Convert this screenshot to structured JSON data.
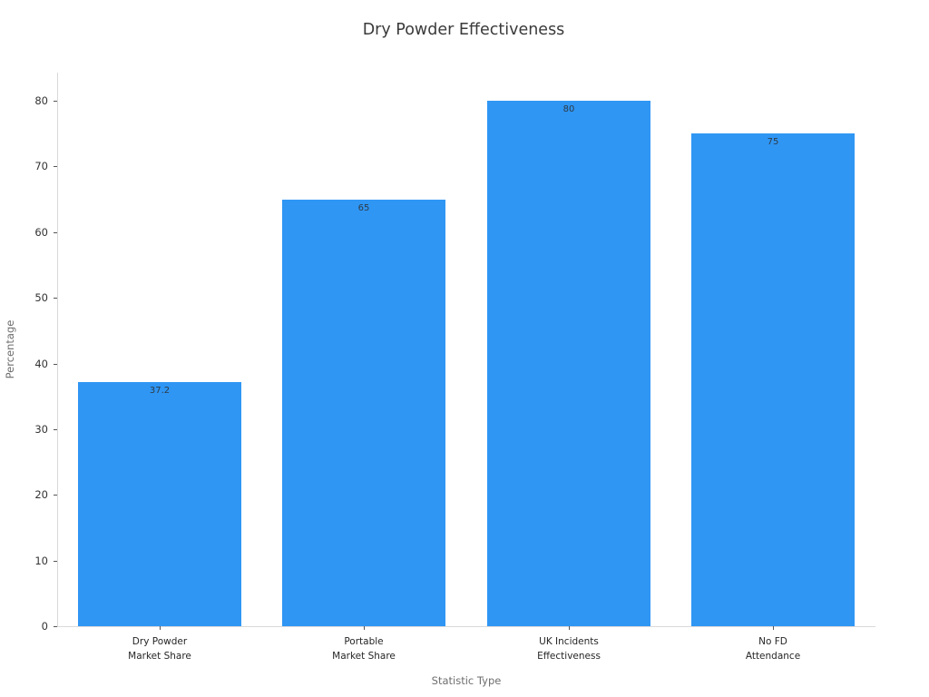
{
  "chart_data": {
    "type": "bar",
    "title": "Dry Powder Effectiveness",
    "xlabel": "Statistic Type",
    "ylabel": "Percentage",
    "categories": [
      [
        "Dry Powder",
        "Market Share"
      ],
      [
        "Portable",
        "Market Share"
      ],
      [
        "UK Incidents",
        "Effectiveness"
      ],
      [
        "No FD",
        "Attendance"
      ]
    ],
    "values": [
      37.2,
      65,
      80,
      75
    ],
    "value_labels": [
      "37.2",
      "65",
      "80",
      "75"
    ],
    "yticks": [
      0,
      10,
      20,
      30,
      40,
      50,
      60,
      70,
      80
    ],
    "ylim": [
      0,
      84.3
    ],
    "grid": false,
    "legend": null,
    "bar_color": "#2F96F4",
    "bar_width_fraction": 0.8
  }
}
